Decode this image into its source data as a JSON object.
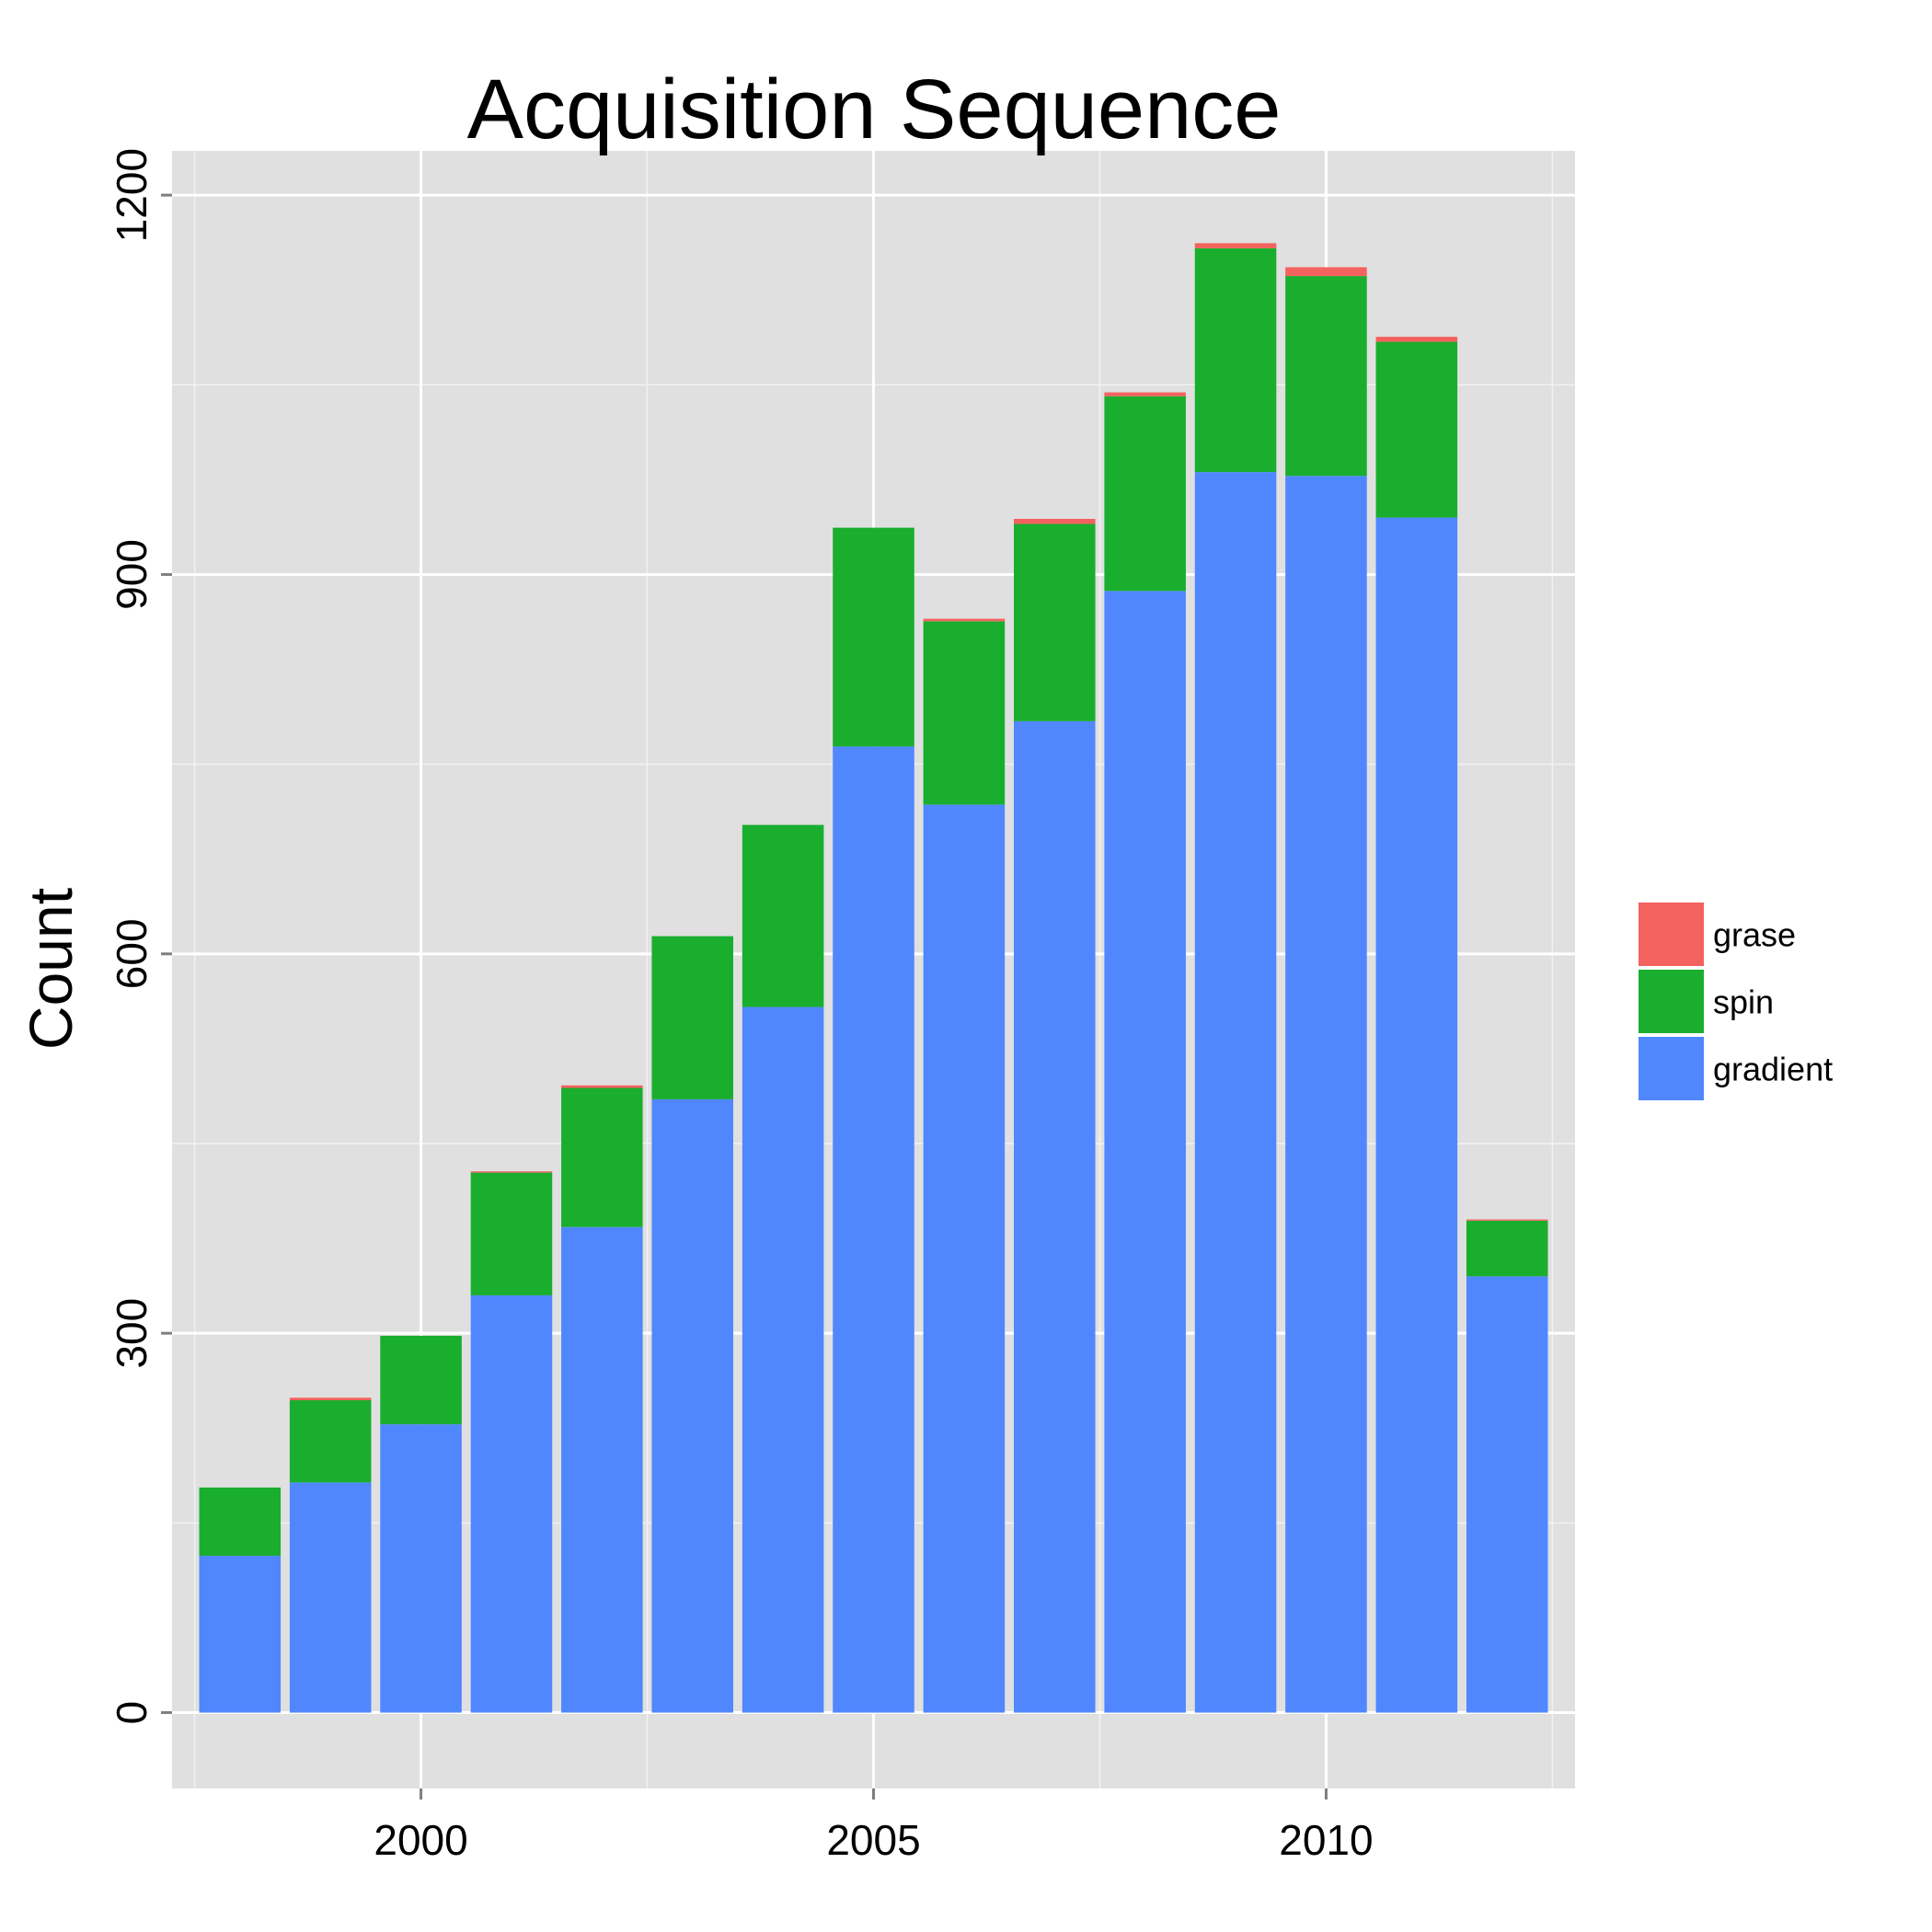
{
  "chart_data": {
    "type": "bar",
    "stacked": true,
    "title": "Acquisition Sequence",
    "xlabel": "",
    "ylabel": "Count",
    "x": [
      1998,
      1999,
      2000,
      2001,
      2002,
      2003,
      2004,
      2005,
      2006,
      2007,
      2008,
      2009,
      2010,
      2011,
      2012
    ],
    "xlim": [
      1997.25,
      2012.75
    ],
    "ylim": [
      -60,
      1235
    ],
    "xticks": [
      2000,
      2005,
      2010
    ],
    "yticks": [
      0,
      300,
      600,
      900,
      1200
    ],
    "grid": true,
    "legend_position": "right",
    "series": [
      {
        "name": "gradient",
        "color": "#5087FF",
        "values": [
          124,
          182,
          228,
          330,
          384,
          485,
          558,
          764,
          718,
          784,
          887,
          981,
          978,
          945,
          345
        ]
      },
      {
        "name": "spin",
        "color": "#19AE2E",
        "values": [
          54,
          65,
          70,
          97,
          110,
          129,
          144,
          173,
          145,
          156,
          154,
          177,
          158,
          139,
          44
        ]
      },
      {
        "name": "grase",
        "color": "#F3625E",
        "values": [
          0,
          2,
          0,
          1,
          2,
          0,
          0,
          0,
          2,
          4,
          3,
          4,
          7,
          4,
          1
        ]
      }
    ],
    "legend_order": [
      "grase",
      "spin",
      "gradient"
    ]
  }
}
